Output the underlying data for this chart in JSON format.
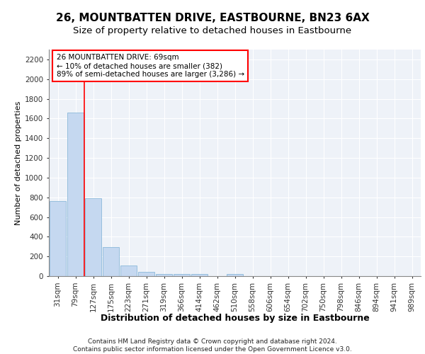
{
  "title": "26, MOUNTBATTEN DRIVE, EASTBOURNE, BN23 6AX",
  "subtitle": "Size of property relative to detached houses in Eastbourne",
  "xlabel": "Distribution of detached houses by size in Eastbourne",
  "ylabel": "Number of detached properties",
  "categories": [
    "31sqm",
    "79sqm",
    "127sqm",
    "175sqm",
    "223sqm",
    "271sqm",
    "319sqm",
    "366sqm",
    "414sqm",
    "462sqm",
    "510sqm",
    "558sqm",
    "606sqm",
    "654sqm",
    "702sqm",
    "750sqm",
    "798sqm",
    "846sqm",
    "894sqm",
    "941sqm",
    "989sqm"
  ],
  "values": [
    760,
    1660,
    790,
    295,
    110,
    40,
    25,
    20,
    20,
    0,
    20,
    0,
    0,
    0,
    0,
    0,
    0,
    0,
    0,
    0,
    0
  ],
  "bar_color": "#c5d8f0",
  "bar_edge_color": "#7bafd4",
  "annotation_box_text": "26 MOUNTBATTEN DRIVE: 69sqm\n← 10% of detached houses are smaller (382)\n89% of semi-detached houses are larger (3,286) →",
  "red_line_x": 1.5,
  "ylim": [
    0,
    2300
  ],
  "yticks": [
    0,
    200,
    400,
    600,
    800,
    1000,
    1200,
    1400,
    1600,
    1800,
    2000,
    2200
  ],
  "footer_line1": "Contains HM Land Registry data © Crown copyright and database right 2024.",
  "footer_line2": "Contains public sector information licensed under the Open Government Licence v3.0.",
  "bg_color": "#eef2f8",
  "grid_color": "#ffffff",
  "title_fontsize": 11,
  "subtitle_fontsize": 9.5,
  "ylabel_fontsize": 8,
  "xlabel_fontsize": 9,
  "tick_fontsize": 7.5,
  "annotation_fontsize": 7.5,
  "footer_fontsize": 6.5
}
